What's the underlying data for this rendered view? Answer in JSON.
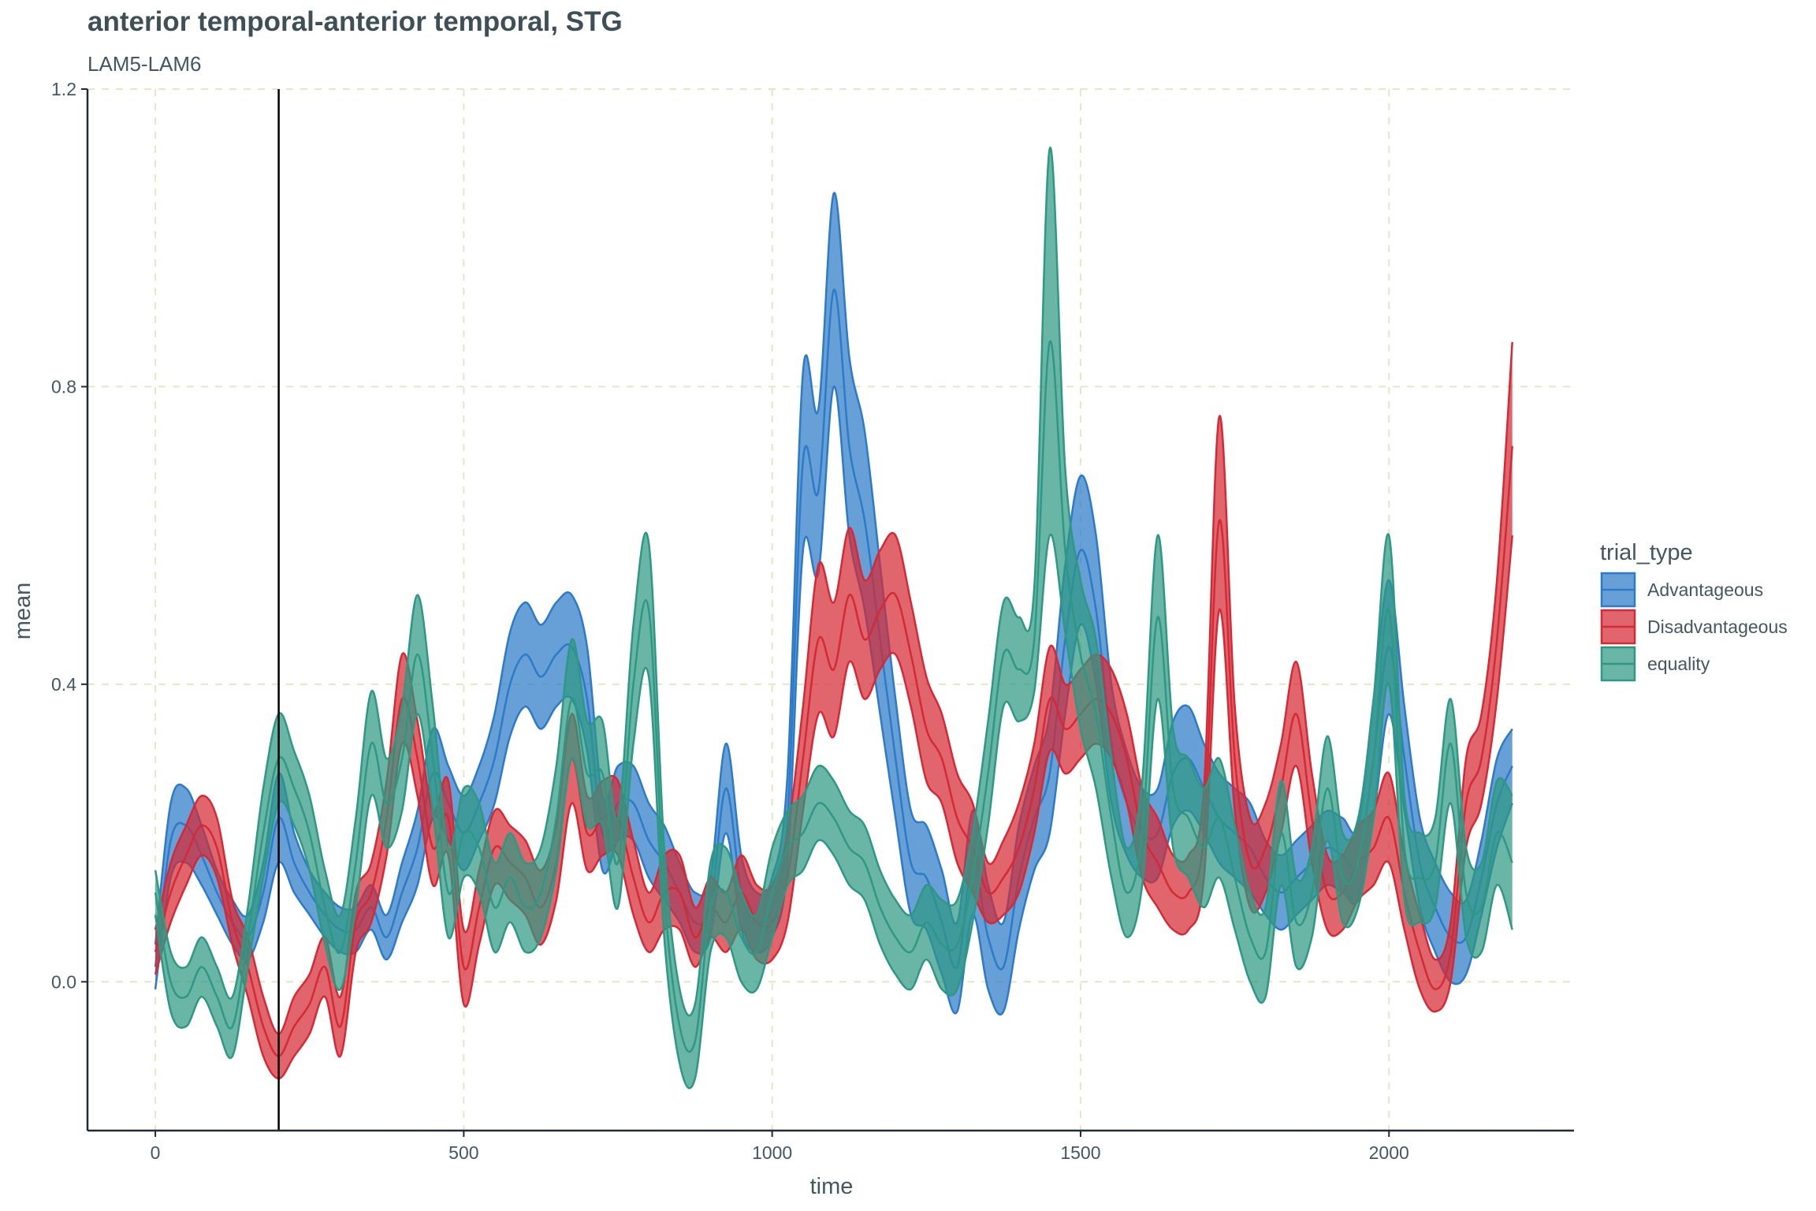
{
  "chart_data": {
    "type": "area",
    "title": "anterior temporal-anterior temporal, STG",
    "subtitle": "LAM5-LAM6",
    "xlabel": "time",
    "ylabel": "mean",
    "xlim": [
      -110,
      2300
    ],
    "ylim": [
      -0.2,
      1.2
    ],
    "x_ticks": [
      0,
      500,
      1000,
      1500,
      2000
    ],
    "y_ticks": [
      0.0,
      0.4,
      0.8,
      1.2
    ],
    "y_tick_labels": [
      "0.0",
      "0.4",
      "0.8",
      "1.2"
    ],
    "grid": true,
    "vline_x": 200,
    "legend": {
      "title": "trial_type",
      "position": "right"
    },
    "x": [
      0,
      25,
      50,
      75,
      100,
      125,
      150,
      175,
      200,
      225,
      250,
      275,
      300,
      325,
      350,
      375,
      400,
      425,
      450,
      475,
      500,
      525,
      550,
      575,
      600,
      625,
      650,
      675,
      700,
      725,
      750,
      775,
      800,
      825,
      850,
      875,
      900,
      925,
      950,
      975,
      1000,
      1025,
      1050,
      1075,
      1100,
      1125,
      1150,
      1175,
      1200,
      1225,
      1250,
      1275,
      1300,
      1325,
      1350,
      1375,
      1400,
      1425,
      1450,
      1475,
      1500,
      1525,
      1550,
      1575,
      1600,
      1625,
      1650,
      1675,
      1700,
      1725,
      1750,
      1775,
      1800,
      1825,
      1850,
      1875,
      1900,
      1925,
      1950,
      1975,
      2000,
      2025,
      2050,
      2075,
      2100,
      2125,
      2150,
      2175,
      2200
    ],
    "series": [
      {
        "name": "Advantageous",
        "color": "#2d7ac8",
        "mean": [
          0.02,
          0.19,
          0.21,
          0.17,
          0.12,
          0.08,
          0.06,
          0.12,
          0.22,
          0.16,
          0.12,
          0.09,
          0.07,
          0.07,
          0.1,
          0.06,
          0.12,
          0.18,
          0.28,
          0.24,
          0.2,
          0.24,
          0.3,
          0.4,
          0.44,
          0.41,
          0.44,
          0.45,
          0.38,
          0.2,
          0.24,
          0.24,
          0.19,
          0.16,
          0.12,
          0.08,
          0.1,
          0.26,
          0.12,
          0.08,
          0.1,
          0.22,
          0.7,
          0.66,
          0.93,
          0.72,
          0.62,
          0.46,
          0.3,
          0.16,
          0.14,
          0.08,
          0.02,
          0.16,
          0.06,
          0.02,
          0.14,
          0.22,
          0.28,
          0.46,
          0.58,
          0.5,
          0.32,
          0.24,
          0.2,
          0.2,
          0.28,
          0.3,
          0.26,
          0.22,
          0.2,
          0.18,
          0.14,
          0.12,
          0.14,
          0.16,
          0.18,
          0.17,
          0.16,
          0.3,
          0.45,
          0.3,
          0.16,
          0.1,
          0.06,
          0.06,
          0.14,
          0.24,
          0.29
        ],
        "lower": [
          -0.01,
          0.14,
          0.16,
          0.13,
          0.09,
          0.05,
          0.03,
          0.08,
          0.16,
          0.12,
          0.09,
          0.06,
          0.04,
          0.04,
          0.07,
          0.03,
          0.08,
          0.13,
          0.22,
          0.19,
          0.15,
          0.19,
          0.24,
          0.33,
          0.37,
          0.34,
          0.37,
          0.38,
          0.31,
          0.15,
          0.19,
          0.19,
          0.14,
          0.11,
          0.08,
          0.04,
          0.06,
          0.2,
          0.07,
          0.04,
          0.06,
          0.16,
          0.58,
          0.55,
          0.8,
          0.6,
          0.5,
          0.36,
          0.22,
          0.09,
          0.07,
          0.01,
          -0.04,
          0.09,
          -0.01,
          -0.04,
          0.07,
          0.15,
          0.2,
          0.36,
          0.48,
          0.4,
          0.24,
          0.17,
          0.14,
          0.14,
          0.21,
          0.23,
          0.2,
          0.16,
          0.14,
          0.12,
          0.09,
          0.07,
          0.09,
          0.11,
          0.13,
          0.12,
          0.11,
          0.22,
          0.36,
          0.23,
          0.1,
          0.04,
          0.0,
          0.01,
          0.09,
          0.18,
          0.24
        ],
        "upper": [
          0.05,
          0.24,
          0.26,
          0.21,
          0.15,
          0.11,
          0.09,
          0.16,
          0.28,
          0.2,
          0.15,
          0.12,
          0.1,
          0.1,
          0.13,
          0.09,
          0.16,
          0.23,
          0.34,
          0.29,
          0.25,
          0.29,
          0.36,
          0.47,
          0.51,
          0.48,
          0.51,
          0.52,
          0.45,
          0.25,
          0.29,
          0.29,
          0.24,
          0.21,
          0.16,
          0.12,
          0.14,
          0.32,
          0.17,
          0.12,
          0.14,
          0.28,
          0.82,
          0.77,
          1.06,
          0.84,
          0.74,
          0.56,
          0.38,
          0.23,
          0.21,
          0.15,
          0.08,
          0.23,
          0.13,
          0.08,
          0.21,
          0.29,
          0.36,
          0.56,
          0.68,
          0.6,
          0.4,
          0.31,
          0.26,
          0.26,
          0.35,
          0.37,
          0.32,
          0.28,
          0.26,
          0.24,
          0.19,
          0.17,
          0.19,
          0.21,
          0.23,
          0.22,
          0.21,
          0.38,
          0.54,
          0.37,
          0.22,
          0.16,
          0.12,
          0.11,
          0.19,
          0.3,
          0.34
        ]
      },
      {
        "name": "Disadvantageous",
        "color": "#d42a35",
        "mean": [
          0.04,
          0.12,
          0.17,
          0.21,
          0.18,
          0.08,
          0.02,
          -0.06,
          -0.1,
          -0.06,
          -0.03,
          0.02,
          -0.06,
          0.08,
          0.12,
          0.22,
          0.38,
          0.3,
          0.18,
          0.22,
          0.02,
          0.1,
          0.18,
          0.16,
          0.14,
          0.1,
          0.16,
          0.3,
          0.2,
          0.22,
          0.22,
          0.14,
          0.08,
          0.12,
          0.12,
          0.06,
          0.1,
          0.08,
          0.12,
          0.08,
          0.08,
          0.14,
          0.3,
          0.46,
          0.42,
          0.52,
          0.46,
          0.5,
          0.52,
          0.44,
          0.34,
          0.3,
          0.22,
          0.18,
          0.12,
          0.14,
          0.18,
          0.26,
          0.38,
          0.34,
          0.36,
          0.38,
          0.36,
          0.3,
          0.2,
          0.16,
          0.12,
          0.12,
          0.2,
          0.62,
          0.3,
          0.16,
          0.18,
          0.26,
          0.36,
          0.22,
          0.12,
          0.12,
          0.16,
          0.18,
          0.22,
          0.12,
          0.04,
          -0.01,
          0.04,
          0.24,
          0.3,
          0.46,
          0.72
        ],
        "lower": [
          0.01,
          0.08,
          0.13,
          0.17,
          0.14,
          0.05,
          -0.02,
          -0.1,
          -0.13,
          -0.1,
          -0.07,
          -0.02,
          -0.1,
          0.04,
          0.08,
          0.17,
          0.32,
          0.25,
          0.13,
          0.17,
          -0.03,
          0.05,
          0.13,
          0.11,
          0.09,
          0.05,
          0.11,
          0.24,
          0.15,
          0.17,
          0.17,
          0.09,
          0.04,
          0.07,
          0.07,
          0.02,
          0.06,
          0.04,
          0.07,
          0.03,
          0.03,
          0.08,
          0.23,
          0.36,
          0.33,
          0.43,
          0.38,
          0.42,
          0.44,
          0.37,
          0.27,
          0.24,
          0.16,
          0.12,
          0.08,
          0.09,
          0.12,
          0.2,
          0.31,
          0.28,
          0.3,
          0.32,
          0.3,
          0.24,
          0.14,
          0.1,
          0.07,
          0.07,
          0.14,
          0.5,
          0.23,
          0.1,
          0.12,
          0.2,
          0.29,
          0.16,
          0.07,
          0.07,
          0.11,
          0.13,
          0.16,
          0.07,
          -0.01,
          -0.04,
          0.0,
          0.18,
          0.24,
          0.38,
          0.6
        ],
        "upper": [
          0.07,
          0.16,
          0.21,
          0.25,
          0.22,
          0.11,
          0.06,
          -0.02,
          -0.07,
          -0.02,
          0.01,
          0.06,
          -0.02,
          0.12,
          0.16,
          0.27,
          0.44,
          0.35,
          0.23,
          0.27,
          0.07,
          0.15,
          0.23,
          0.21,
          0.19,
          0.15,
          0.21,
          0.36,
          0.25,
          0.27,
          0.27,
          0.19,
          0.12,
          0.17,
          0.17,
          0.1,
          0.14,
          0.12,
          0.17,
          0.13,
          0.13,
          0.2,
          0.37,
          0.56,
          0.51,
          0.61,
          0.54,
          0.58,
          0.6,
          0.51,
          0.41,
          0.36,
          0.28,
          0.24,
          0.16,
          0.19,
          0.24,
          0.32,
          0.45,
          0.4,
          0.42,
          0.44,
          0.42,
          0.36,
          0.26,
          0.22,
          0.17,
          0.17,
          0.26,
          0.76,
          0.37,
          0.22,
          0.24,
          0.32,
          0.43,
          0.28,
          0.17,
          0.17,
          0.21,
          0.23,
          0.28,
          0.17,
          0.09,
          0.03,
          0.08,
          0.3,
          0.36,
          0.54,
          0.86
        ]
      },
      {
        "name": "equality",
        "color": "#2f9884",
        "mean": [
          0.12,
          0.0,
          -0.02,
          0.02,
          -0.02,
          -0.06,
          0.06,
          0.2,
          0.3,
          0.26,
          0.2,
          0.1,
          0.04,
          0.16,
          0.32,
          0.24,
          0.3,
          0.44,
          0.3,
          0.12,
          0.2,
          0.18,
          0.1,
          0.14,
          0.1,
          0.12,
          0.22,
          0.38,
          0.28,
          0.28,
          0.16,
          0.4,
          0.5,
          0.12,
          -0.06,
          -0.08,
          0.1,
          0.12,
          0.06,
          0.04,
          0.12,
          0.18,
          0.2,
          0.24,
          0.22,
          0.18,
          0.16,
          0.1,
          0.06,
          0.04,
          0.08,
          0.05,
          0.05,
          0.14,
          0.28,
          0.44,
          0.42,
          0.46,
          0.86,
          0.58,
          0.44,
          0.36,
          0.22,
          0.12,
          0.2,
          0.49,
          0.26,
          0.22,
          0.18,
          0.22,
          0.14,
          0.06,
          0.04,
          0.2,
          0.08,
          0.12,
          0.26,
          0.14,
          0.16,
          0.3,
          0.5,
          0.18,
          0.14,
          0.16,
          0.32,
          0.12,
          0.1,
          0.2,
          0.16
        ],
        "lower": [
          0.09,
          -0.04,
          -0.06,
          -0.02,
          -0.06,
          -0.1,
          0.02,
          0.14,
          0.24,
          0.21,
          0.15,
          0.05,
          -0.01,
          0.1,
          0.25,
          0.18,
          0.23,
          0.36,
          0.23,
          0.06,
          0.14,
          0.12,
          0.04,
          0.08,
          0.04,
          0.06,
          0.15,
          0.3,
          0.21,
          0.21,
          0.1,
          0.32,
          0.41,
          0.06,
          -0.11,
          -0.13,
          0.04,
          0.06,
          0.0,
          -0.01,
          0.06,
          0.13,
          0.15,
          0.19,
          0.17,
          0.13,
          0.11,
          0.05,
          0.01,
          -0.01,
          0.03,
          -0.01,
          -0.01,
          0.08,
          0.21,
          0.37,
          0.35,
          0.39,
          0.6,
          0.47,
          0.34,
          0.26,
          0.14,
          0.06,
          0.13,
          0.38,
          0.18,
          0.14,
          0.1,
          0.14,
          0.07,
          0.0,
          -0.02,
          0.13,
          0.02,
          0.06,
          0.19,
          0.08,
          0.1,
          0.22,
          0.4,
          0.11,
          0.08,
          0.1,
          0.24,
          0.06,
          0.04,
          0.13,
          0.07
        ],
        "upper": [
          0.15,
          0.04,
          0.02,
          0.06,
          0.02,
          -0.02,
          0.1,
          0.26,
          0.36,
          0.31,
          0.25,
          0.15,
          0.09,
          0.22,
          0.39,
          0.3,
          0.37,
          0.52,
          0.37,
          0.18,
          0.26,
          0.24,
          0.16,
          0.2,
          0.16,
          0.18,
          0.29,
          0.46,
          0.35,
          0.35,
          0.22,
          0.48,
          0.59,
          0.18,
          -0.01,
          -0.03,
          0.16,
          0.18,
          0.12,
          0.09,
          0.18,
          0.23,
          0.25,
          0.29,
          0.27,
          0.23,
          0.21,
          0.15,
          0.11,
          0.09,
          0.13,
          0.11,
          0.11,
          0.2,
          0.35,
          0.51,
          0.49,
          0.53,
          1.12,
          0.69,
          0.54,
          0.46,
          0.3,
          0.18,
          0.27,
          0.6,
          0.34,
          0.3,
          0.26,
          0.3,
          0.21,
          0.12,
          0.1,
          0.27,
          0.14,
          0.18,
          0.33,
          0.2,
          0.22,
          0.38,
          0.6,
          0.25,
          0.2,
          0.22,
          0.38,
          0.18,
          0.16,
          0.27,
          0.25
        ]
      }
    ]
  }
}
